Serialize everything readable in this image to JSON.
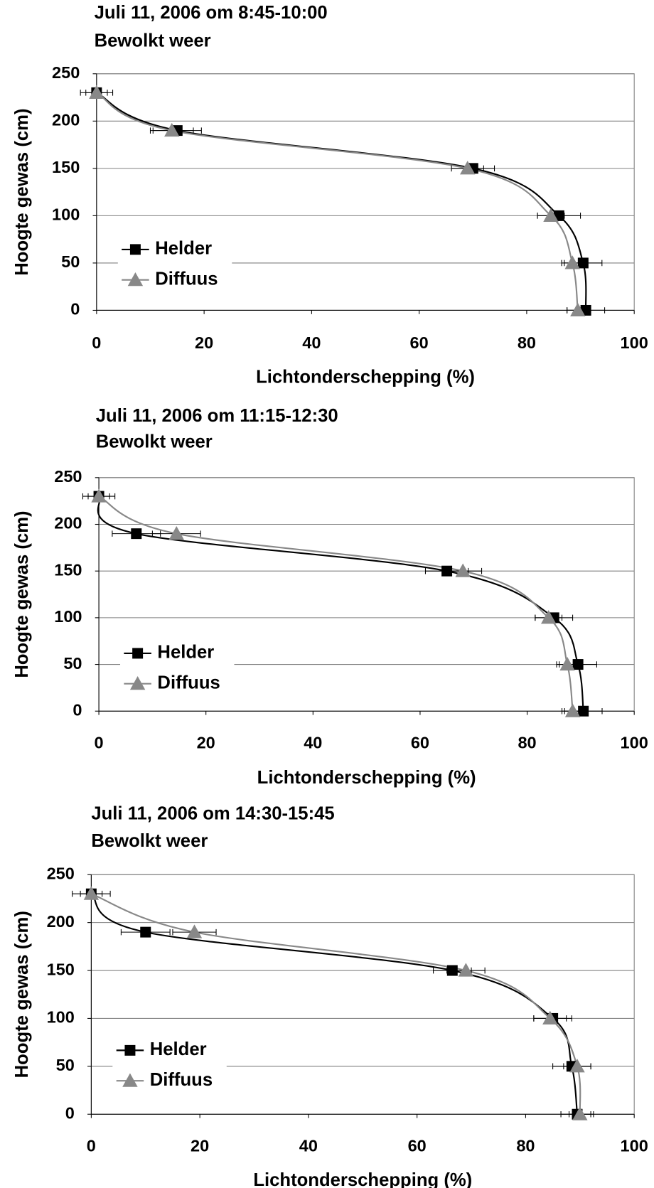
{
  "chart_data": [
    {
      "type": "line",
      "title": "Juli 11, 2006 om 8:45-10:00",
      "subtitle": "Bewolkt weer",
      "x_label": "Lichtonderschepping (%)",
      "y_label": "Hoogte gewas (cm)",
      "xlim": [
        0,
        100
      ],
      "xticks": [
        0,
        20,
        40,
        60,
        80,
        100
      ],
      "ylim": [
        0,
        250
      ],
      "yticks": [
        0,
        50,
        100,
        150,
        200,
        250
      ],
      "grid": true,
      "legend": "left",
      "series": [
        {
          "name": "Helder",
          "color": "#000000",
          "marker": "square",
          "x": [
            0,
            15,
            70,
            86,
            90.5,
            91
          ],
          "values": [
            230,
            190,
            150,
            100,
            50,
            0
          ],
          "x_errors": [
            3,
            4.5,
            4,
            4,
            3.5,
            3.5
          ]
        },
        {
          "name": "Diffuus",
          "color": "#888888",
          "marker": "triangle",
          "x": [
            0,
            14,
            69,
            84.5,
            88.5,
            89.5
          ],
          "values": [
            230,
            190,
            150,
            100,
            50,
            0
          ],
          "x_errors": [
            2,
            4,
            3,
            2.5,
            2,
            2
          ]
        }
      ]
    },
    {
      "type": "line",
      "title": "Juli 11, 2006 om 11:15-12:30",
      "subtitle": "Bewolkt weer",
      "x_label": "Lichtonderschepping (%)",
      "y_label": "Hoogte gewas (cm)",
      "xlim": [
        0,
        100
      ],
      "xticks": [
        0,
        20,
        40,
        60,
        80,
        100
      ],
      "ylim": [
        0,
        250
      ],
      "yticks": [
        0,
        50,
        100,
        150,
        200,
        250
      ],
      "grid": true,
      "legend": "left",
      "series": [
        {
          "name": "Helder",
          "color": "#000000",
          "marker": "square",
          "x": [
            0,
            7,
            65,
            85,
            89.5,
            90.5
          ],
          "values": [
            230,
            190,
            150,
            100,
            50,
            0
          ],
          "x_errors": [
            3,
            4.5,
            4,
            3.5,
            3.5,
            3.5
          ]
        },
        {
          "name": "Diffuus",
          "color": "#888888",
          "marker": "triangle",
          "x": [
            0,
            14.5,
            68,
            84,
            87.5,
            88.5
          ],
          "values": [
            230,
            190,
            150,
            100,
            50,
            0
          ],
          "x_errors": [
            2,
            4.5,
            3.5,
            2.5,
            2,
            2
          ]
        }
      ]
    },
    {
      "type": "line",
      "title": "Juli 11, 2006 om 14:30-15:45",
      "subtitle": "Bewolkt weer",
      "x_label": "Lichtonderschepping (%)",
      "y_label": "Hoogte gewas (cm)",
      "xlim": [
        0,
        100
      ],
      "xticks": [
        0,
        20,
        40,
        60,
        80,
        100
      ],
      "ylim": [
        0,
        250
      ],
      "yticks": [
        0,
        50,
        100,
        150,
        200,
        250
      ],
      "grid": true,
      "legend": "left",
      "series": [
        {
          "name": "Helder",
          "color": "#000000",
          "marker": "square",
          "x": [
            0,
            10,
            66.5,
            85,
            88.5,
            89.5
          ],
          "values": [
            230,
            190,
            150,
            100,
            50,
            0
          ],
          "x_errors": [
            3.5,
            4.5,
            3.5,
            3.5,
            3.5,
            3
          ]
        },
        {
          "name": "Diffuus",
          "color": "#888888",
          "marker": "triangle",
          "x": [
            0,
            19,
            69,
            84.5,
            89.5,
            90
          ],
          "values": [
            230,
            190,
            150,
            100,
            50,
            0
          ],
          "x_errors": [
            2,
            4,
            3.5,
            3,
            2.5,
            2
          ]
        }
      ]
    }
  ]
}
